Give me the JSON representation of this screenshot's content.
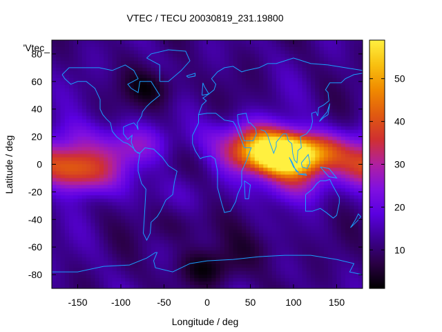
{
  "chart_data": {
    "type": "heatmap",
    "title": "VTEC / TECU 20030819_231.19800",
    "xlabel": "Longitude / deg",
    "ylabel": "Latitude / deg",
    "key_label": "'Vtec_",
    "xlim": [
      -180,
      180
    ],
    "ylim": [
      -90,
      90
    ],
    "xticks": [
      -150,
      -100,
      -50,
      0,
      50,
      100,
      150
    ],
    "yticks": [
      -80,
      -60,
      -40,
      -20,
      0,
      20,
      40,
      60,
      80
    ],
    "colorbar": {
      "range": [
        1,
        59
      ],
      "ticks": [
        10,
        20,
        30,
        40,
        50
      ]
    },
    "colormap": [
      "#000000",
      "#2a0044",
      "#3c0090",
      "#5a00e0",
      "#8010e0",
      "#b020a0",
      "#d03030",
      "#e05a10",
      "#f08a00",
      "#f8c010",
      "#fff040"
    ],
    "coastline_color": "#1aa0ff",
    "grid": false,
    "ionosphere_model": {
      "background": 12,
      "features": [
        {
          "lon": 95,
          "lat": 5,
          "amplitude": 46
        },
        {
          "lon": 85,
          "lat": 10,
          "amplitude": 22
        },
        {
          "lon": 50,
          "lat": 8,
          "amplitude": 18
        },
        {
          "lon": 140,
          "lat": 10,
          "amplitude": 14
        },
        {
          "lon": 100,
          "lat": -15,
          "amplitude": 14
        },
        {
          "lon": 60,
          "lat": 22,
          "amplitude": 12
        },
        {
          "lon": -165,
          "lat": 0,
          "amplitude": 24
        },
        {
          "lon": -140,
          "lat": -10,
          "amplitude": 16
        },
        {
          "lon": -150,
          "lat": 20,
          "amplitude": 8
        },
        {
          "lon": -80,
          "lat": 15,
          "amplitude": 10
        },
        {
          "lon": -110,
          "lat": 5,
          "amplitude": 6
        },
        {
          "lon": 0,
          "lat": 20,
          "amplitude": 5
        },
        {
          "lon": -40,
          "lat": -20,
          "amplitude": 4
        },
        {
          "lon": -60,
          "lat": 55,
          "amplitude": -8
        },
        {
          "lon": 0,
          "lat": -75,
          "amplitude": -9
        },
        {
          "lon": -30,
          "lat": -45,
          "amplitude": -5
        },
        {
          "lon": 70,
          "lat": -60,
          "amplitude": -4
        }
      ]
    }
  }
}
